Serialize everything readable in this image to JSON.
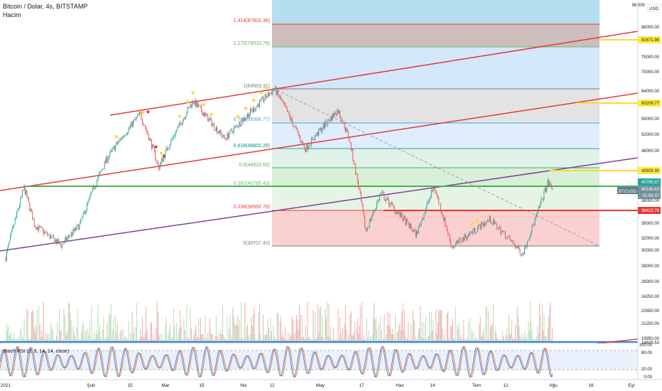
{
  "header": {
    "title": "Bitcoin / Dolar, 4s, BITSTAMP",
    "volume_label": "Hacim"
  },
  "currency_badge": "USD",
  "oscillator": {
    "label": "Stoch RSI (3, 3, 14, 14, close)",
    "axis_labels": [
      "100.00",
      "80.00",
      "20.00",
      "0.00"
    ]
  },
  "colors": {
    "up": "#26a69a",
    "down": "#ef5350",
    "channel": "#e53935",
    "purple_line": "#7e3f98",
    "green_line": "#2e7d32",
    "yellow": "#ffeb3b"
  },
  "chart_data": {
    "type": "candlestick",
    "symbol": "BTCUSD",
    "x_tick_labels": [
      "2021",
      "Şub",
      "15",
      "Mar",
      "15",
      "Nis",
      "12",
      "May",
      "17",
      "Haz",
      "14",
      "Tem",
      "12",
      "Ağu",
      "16",
      "Eyl"
    ],
    "y_tick_labels": [
      "96 000",
      "88000.00",
      "81671.98",
      "75000.00",
      "70000.00",
      "64000.00",
      "60209.77",
      "56000.00",
      "52000.00",
      "48000.00",
      "43928.30",
      "40785.87",
      "38000.00",
      "36415.76",
      "35000.00",
      "32000.00",
      "30000.00",
      "28000.00",
      "26000.00",
      "24250.00",
      "22650.00",
      "21250.00",
      "19950.00",
      "18825.53"
    ],
    "highlighted_labels": [
      {
        "text": "81671.98",
        "color": "#ffeb3b"
      },
      {
        "text": "60209.77",
        "color": "#ffeb3b"
      },
      {
        "text": "43928.30",
        "color": "#ffeb3b"
      },
      {
        "text": "40785.87",
        "color": "#26a69a"
      },
      {
        "text": "40145.63",
        "color": "#78909c"
      },
      {
        "text": "01:58:37",
        "color": "#78909c"
      },
      {
        "text": "36415.76",
        "color": "#e53935"
      }
    ],
    "fibonacci": [
      {
        "label": "1.414(87802.36)",
        "ratio": 1.414,
        "price": 87802.36
      },
      {
        "label": "1.272(79010.76)",
        "ratio": 1.272,
        "price": 79010.76
      },
      {
        "label": "1(64553.31)",
        "ratio": 1,
        "price": 64553.31
      },
      {
        "label": "0.786(55088.77)",
        "ratio": 0.786,
        "price": 55088.77
      },
      {
        "label": "0.618(48602.26)",
        "ratio": 0.618,
        "price": 48602.26
      },
      {
        "label": "0.5(44522.62)",
        "ratio": 0.5,
        "price": 44522.62
      },
      {
        "label": "0.382(40785.43)",
        "ratio": 0.382,
        "price": 40785.43
      },
      {
        "label": "0.236(36592.70)",
        "ratio": 0.236,
        "price": 36592.7
      },
      {
        "label": "0(30707.40)",
        "ratio": 0,
        "price": 30707.4
      }
    ],
    "price_path": [
      {
        "d": "2021-01-01",
        "p": 29000
      },
      {
        "d": "2021-01-08",
        "p": 40500
      },
      {
        "d": "2021-01-12",
        "p": 34000
      },
      {
        "d": "2021-01-22",
        "p": 30800
      },
      {
        "d": "2021-01-29",
        "p": 34000
      },
      {
        "d": "2021-02-08",
        "p": 46000
      },
      {
        "d": "2021-02-21",
        "p": 57500
      },
      {
        "d": "2021-02-28",
        "p": 44500
      },
      {
        "d": "2021-03-13",
        "p": 61000
      },
      {
        "d": "2021-03-25",
        "p": 51000
      },
      {
        "d": "2021-04-13",
        "p": 64500
      },
      {
        "d": "2021-04-25",
        "p": 48500
      },
      {
        "d": "2021-05-08",
        "p": 58500
      },
      {
        "d": "2021-05-12",
        "p": 52000
      },
      {
        "d": "2021-05-19",
        "p": 33000
      },
      {
        "d": "2021-05-25",
        "p": 39500
      },
      {
        "d": "2021-06-08",
        "p": 32500
      },
      {
        "d": "2021-06-15",
        "p": 40700
      },
      {
        "d": "2021-06-22",
        "p": 30500
      },
      {
        "d": "2021-07-07",
        "p": 35000
      },
      {
        "d": "2021-07-20",
        "p": 29500
      },
      {
        "d": "2021-07-25",
        "p": 35000
      },
      {
        "d": "2021-07-30",
        "p": 41500
      },
      {
        "d": "2021-08-01",
        "p": 40145.63
      }
    ]
  }
}
